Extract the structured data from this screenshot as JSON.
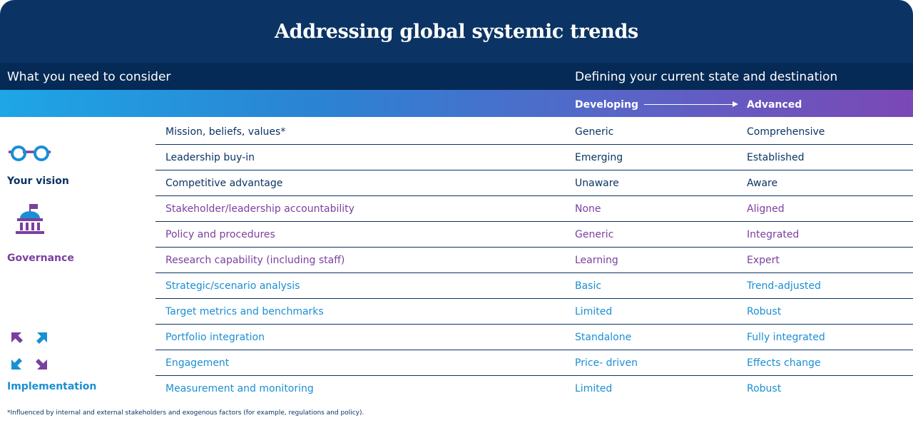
{
  "title": "Addressing global systemic trends",
  "subheader": {
    "left": "What you need to consider",
    "right": "Defining your current state and destination"
  },
  "scale": {
    "from": "Developing",
    "to": "Advanced"
  },
  "sections": [
    {
      "label": "Your vision",
      "icon": "glasses-icon",
      "color": "#0b3464",
      "rows": [
        {
          "item": "Mission, beliefs, values*",
          "developing": "Generic",
          "advanced": "Comprehensive"
        },
        {
          "item": "Leadership buy-in",
          "developing": "Emerging",
          "advanced": "Established"
        },
        {
          "item": "Competitive advantage",
          "developing": "Unaware",
          "advanced": "Aware"
        }
      ]
    },
    {
      "label": "Governance",
      "icon": "institution-building-icon",
      "color": "#7b3fa0",
      "rows": [
        {
          "item": "Stakeholder/leadership accountability",
          "developing": "None",
          "advanced": "Aligned"
        },
        {
          "item": "Policy and procedures",
          "developing": "Generic",
          "advanced": "Integrated"
        },
        {
          "item": "Research capability (including staff)",
          "developing": "Learning",
          "advanced": "Expert"
        }
      ]
    },
    {
      "label": "Implementation",
      "icon": "four-arrows-icon",
      "color": "#1a8fd3",
      "rows": [
        {
          "item": "Strategic/scenario analysis",
          "developing": "Basic",
          "advanced": "Trend-adjusted"
        },
        {
          "item": "Target metrics and benchmarks",
          "developing": "Limited",
          "advanced": "Robust"
        },
        {
          "item": "Portfolio integration",
          "developing": "Standalone",
          "advanced": "Fully integrated"
        },
        {
          "item": "Engagement",
          "developing": "Price- driven",
          "advanced": "Effects change"
        },
        {
          "item": "Measurement and monitoring",
          "developing": "Limited",
          "advanced": "Robust"
        }
      ]
    }
  ],
  "footnote": "*Influenced by internal and external stakeholders and exogenous factors (for example, regulations and policy).",
  "colors": {
    "navy": "#0b3464",
    "purple": "#7b3fa0",
    "blue": "#1a8fd3"
  }
}
